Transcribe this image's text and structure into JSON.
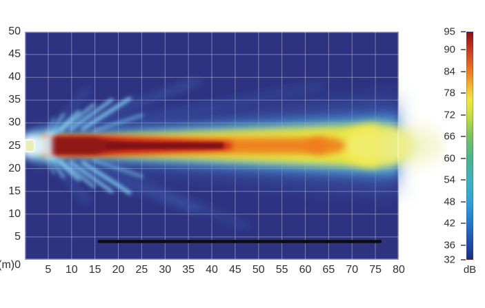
{
  "figure": {
    "background": "#ffffff"
  },
  "chart_data": {
    "type": "heatmap",
    "title": "",
    "description": "Sound pressure level (SPL) coverage map of a loudspeaker beam on a vertical plane; hot beam core at 25 m height propagating from 0 m to beyond 80 m, with cyan side lobes fanning out near the source and a black overlay bar near the floor",
    "x_ticks": [
      0,
      5,
      10,
      15,
      20,
      25,
      30,
      35,
      40,
      45,
      50,
      55,
      60,
      65,
      70,
      75,
      80
    ],
    "y_ticks": [
      50,
      45,
      40,
      35,
      30,
      25,
      20,
      15,
      10,
      5
    ],
    "origin_label": "(m)0",
    "axis_unit": "m",
    "x_range": [
      0,
      80
    ],
    "y_range": [
      0,
      50
    ],
    "grid_step_m": 5,
    "grid": true,
    "colorbar": {
      "unit_label": "dB",
      "tick_values": [
        95,
        90,
        84,
        78,
        72,
        66,
        60,
        54,
        48,
        42,
        36,
        32
      ],
      "range": [
        32,
        95
      ],
      "gradient_stops": [
        {
          "value": 32,
          "color": "#1c2e85"
        },
        {
          "value": 36,
          "color": "#1e4aaa"
        },
        {
          "value": 42,
          "color": "#2377cf"
        },
        {
          "value": 48,
          "color": "#2fa3db"
        },
        {
          "value": 54,
          "color": "#3db3c2"
        },
        {
          "value": 60,
          "color": "#47b78c"
        },
        {
          "value": 66,
          "color": "#78c360"
        },
        {
          "value": 72,
          "color": "#c9de3e"
        },
        {
          "value": 76,
          "color": "#f0e93a"
        },
        {
          "value": 79,
          "color": "#f3c531"
        },
        {
          "value": 84,
          "color": "#ee7e1f"
        },
        {
          "value": 90,
          "color": "#cc3b22"
        },
        {
          "value": 95,
          "color": "#8b1113"
        }
      ]
    },
    "features": {
      "source_position_m": {
        "x": 0,
        "y": 25
      },
      "beam_axis_y_m": 25,
      "hot_core_db": 95,
      "hot_core_extent_m": {
        "x_start": 4,
        "x_end": 42
      },
      "orange_extent_m": {
        "x_start": 4,
        "x_end": 65
      },
      "yellow_extent_m": {
        "x_start": 3,
        "x_end": 80
      },
      "side_lobes": "cyan lobes fanning up/down at 20-70 degrees within ~0-25 m of source",
      "overlay_bar": {
        "y_m": 4,
        "x_start_m": 16,
        "x_end_m": 76,
        "color": "#0c0c0c"
      }
    },
    "palette": {
      "plot_bg": "#2d3381",
      "grid_line": "rgba(255,255,255,0.38)",
      "frame_line": "rgba(255,255,255,0.5)",
      "label_color": "#2f2f2f"
    }
  }
}
